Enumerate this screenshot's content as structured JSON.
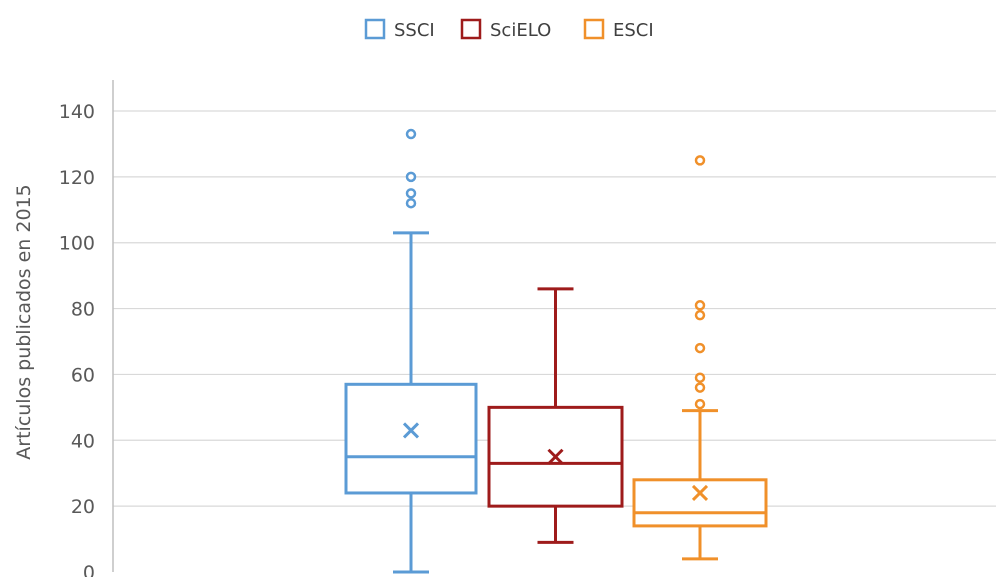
{
  "chart_data": {
    "type": "box",
    "title": "",
    "xlabel": "",
    "ylabel": "Artículos publicados en 2015",
    "ylim": [
      0,
      140
    ],
    "y_ticks": [
      "0",
      "20",
      "40",
      "60",
      "80",
      "100",
      "120",
      "140"
    ],
    "grid": "horizontal",
    "legend_position": "top-center",
    "series": [
      {
        "name": "SSCI",
        "color": "#5b9bd5",
        "min": 0,
        "q1": 24,
        "median": 35,
        "q3": 57,
        "max": 103,
        "mean": 43,
        "outliers": [
          112,
          115,
          120,
          133
        ]
      },
      {
        "name": "SciELO",
        "color": "#9e1b1b",
        "min": 9,
        "q1": 20,
        "median": 33,
        "q3": 50,
        "max": 86,
        "mean": 35,
        "outliers": []
      },
      {
        "name": "ESCI",
        "color": "#f0902a",
        "min": 4,
        "q1": 14,
        "median": 18,
        "q3": 28,
        "max": 49,
        "mean": 24,
        "outliers": [
          51,
          56,
          59,
          68,
          78,
          81,
          125
        ]
      }
    ]
  }
}
